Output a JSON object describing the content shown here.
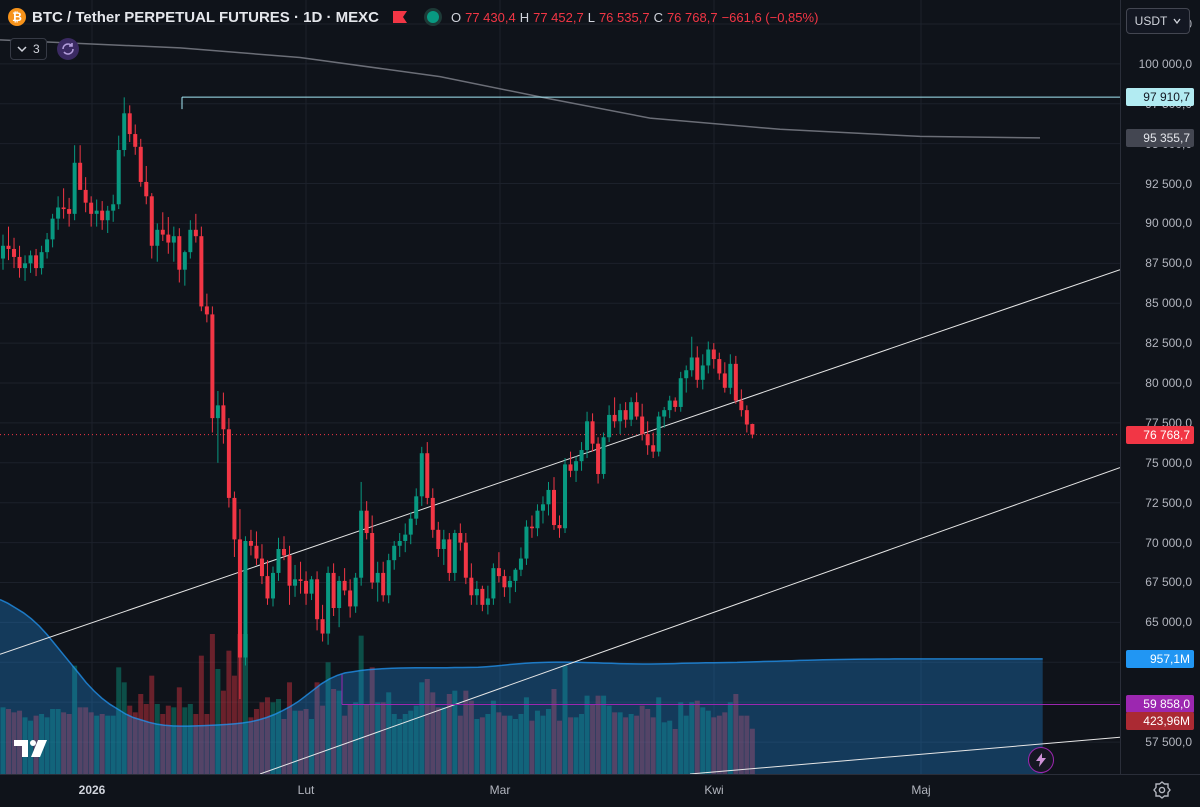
{
  "header": {
    "symbol": "BTC / Tether PERPETUAL FUTURES · 1D · MEXC",
    "open_label": "O",
    "open": "77 430,4",
    "high_label": "H",
    "high": "77 452,7",
    "low_label": "L",
    "low": "76 535,7",
    "close_label": "C",
    "close": "76 768,7",
    "change": "−661,6 (−0,85%)"
  },
  "indicators": {
    "count": "3"
  },
  "currency": {
    "label": "USDT"
  },
  "price_axis": {
    "labels": [
      "102 500,0",
      "100 000,0",
      "97 500,0",
      "95 000,0",
      "92 500,0",
      "90 000,0",
      "87 500,0",
      "85 000,0",
      "82 500,0",
      "80 000,0",
      "77 500,0",
      "75 000,0",
      "72 500,0",
      "70 000,0",
      "67 500,0",
      "65 000,0",
      "62 500,0",
      "60 000,0",
      "57 500,0"
    ]
  },
  "price_tags": {
    "high_line": "97 910,7",
    "ma": "95 355,7",
    "last": "76 768,7",
    "volume_ma": "957,1M",
    "low_line": "59 858,0",
    "volume": "423,96M"
  },
  "time_axis": {
    "labels": [
      {
        "text": "2026",
        "bold": true
      },
      {
        "text": "Lut",
        "bold": false
      },
      {
        "text": "Mar",
        "bold": false
      },
      {
        "text": "Kwi",
        "bold": false
      },
      {
        "text": "Maj",
        "bold": false
      }
    ]
  },
  "colors": {
    "up": "#089981",
    "down": "#f23645",
    "background": "#0f131a",
    "volume_ma": "#2196f3",
    "low_line": "#9c27b0",
    "high_line": "#a5e8f5"
  },
  "icons": {
    "logo": "btc-logo",
    "sync": "sync-icon",
    "flash": "flash-icon",
    "settings": "gear-icon",
    "chevron": "chevron-down-icon"
  },
  "chart_data": {
    "type": "candlestick",
    "symbol": "BTC / Tether PERPETUAL FUTURES",
    "interval": "1D",
    "y_range": [
      55500,
      104000
    ],
    "candles_ohlc": [
      [
        87800,
        89300,
        87100,
        88600
      ],
      [
        88600,
        89800,
        87700,
        88400
      ],
      [
        88400,
        89100,
        87200,
        87900
      ],
      [
        87900,
        88600,
        86600,
        87200
      ],
      [
        87200,
        88000,
        86400,
        87500
      ],
      [
        87500,
        88300,
        86900,
        88000
      ],
      [
        88000,
        88400,
        86700,
        87200
      ],
      [
        87200,
        88600,
        86800,
        88200
      ],
      [
        88200,
        89400,
        87800,
        89000
      ],
      [
        89000,
        90600,
        88500,
        90300
      ],
      [
        90300,
        91700,
        89600,
        91000
      ],
      [
        91000,
        92200,
        90300,
        90900
      ],
      [
        90900,
        91600,
        89800,
        90600
      ],
      [
        90600,
        94900,
        90200,
        93800
      ],
      [
        93800,
        94900,
        92700,
        92100
      ],
      [
        92100,
        92900,
        90700,
        91300
      ],
      [
        91300,
        91700,
        89800,
        90600
      ],
      [
        90600,
        91500,
        89800,
        90800
      ],
      [
        90800,
        91400,
        89600,
        90200
      ],
      [
        90200,
        91100,
        89400,
        90800
      ],
      [
        90800,
        91800,
        90100,
        91200
      ],
      [
        91200,
        95500,
        90900,
        94600
      ],
      [
        94600,
        97900,
        94200,
        96900
      ],
      [
        96900,
        97400,
        95100,
        95600
      ],
      [
        95600,
        96200,
        94300,
        94800
      ],
      [
        94800,
        95300,
        92300,
        92600
      ],
      [
        92600,
        93600,
        91200,
        91700
      ],
      [
        91700,
        91900,
        87800,
        88600
      ],
      [
        88600,
        90000,
        87600,
        89600
      ],
      [
        89600,
        90700,
        88900,
        89300
      ],
      [
        89300,
        90400,
        88100,
        88800
      ],
      [
        88800,
        89800,
        87600,
        89200
      ],
      [
        89200,
        89700,
        86300,
        87100
      ],
      [
        87100,
        88300,
        86100,
        88200
      ],
      [
        88200,
        90200,
        87800,
        89600
      ],
      [
        89600,
        90600,
        88800,
        89200
      ],
      [
        89200,
        89800,
        84500,
        84800
      ],
      [
        84800,
        85600,
        83800,
        84300
      ],
      [
        84300,
        84800,
        76900,
        77800
      ],
      [
        77800,
        79500,
        75000,
        78600
      ],
      [
        78600,
        79400,
        76200,
        77100
      ],
      [
        77100,
        77800,
        72200,
        72800
      ],
      [
        72800,
        73200,
        69100,
        70200
      ],
      [
        70200,
        72100,
        60200,
        62800
      ],
      [
        62800,
        70400,
        62300,
        70100
      ],
      [
        70100,
        70800,
        69200,
        69800
      ],
      [
        69800,
        70700,
        68600,
        69000
      ],
      [
        69000,
        69900,
        67400,
        67900
      ],
      [
        67900,
        68900,
        66100,
        66500
      ],
      [
        66500,
        68500,
        66000,
        68100
      ],
      [
        68100,
        70300,
        67600,
        69600
      ],
      [
        69600,
        70400,
        68900,
        69200
      ],
      [
        69200,
        69800,
        66100,
        67300
      ],
      [
        67300,
        68600,
        66600,
        67700
      ],
      [
        67700,
        68800,
        66800,
        67600
      ],
      [
        67600,
        68200,
        66100,
        66800
      ],
      [
        66800,
        67900,
        66400,
        67700
      ],
      [
        67700,
        68200,
        64500,
        65200
      ],
      [
        65200,
        66100,
        63800,
        64300
      ],
      [
        64300,
        68500,
        63600,
        68100
      ],
      [
        68100,
        68700,
        65400,
        65900
      ],
      [
        65900,
        67900,
        64700,
        67600
      ],
      [
        67600,
        68400,
        66700,
        67000
      ],
      [
        67000,
        67700,
        65300,
        66000
      ],
      [
        66000,
        68100,
        65600,
        67800
      ],
      [
        67800,
        73800,
        67300,
        72000
      ],
      [
        72000,
        72600,
        70200,
        70600
      ],
      [
        70600,
        71700,
        67100,
        67500
      ],
      [
        67500,
        68800,
        66300,
        68100
      ],
      [
        68100,
        68800,
        66300,
        66700
      ],
      [
        66700,
        69300,
        66200,
        68900
      ],
      [
        68900,
        70100,
        68300,
        69800
      ],
      [
        69800,
        70600,
        69100,
        70100
      ],
      [
        70100,
        71200,
        69400,
        70500
      ],
      [
        70500,
        71900,
        69900,
        71500
      ],
      [
        71500,
        73400,
        71100,
        72900
      ],
      [
        72900,
        76000,
        72300,
        75600
      ],
      [
        75600,
        76300,
        72400,
        72800
      ],
      [
        72800,
        73400,
        70300,
        70800
      ],
      [
        70800,
        71300,
        69100,
        69600
      ],
      [
        69600,
        70800,
        68600,
        70200
      ],
      [
        70200,
        70600,
        67600,
        68100
      ],
      [
        68100,
        70800,
        67600,
        70600
      ],
      [
        70600,
        71200,
        69500,
        70000
      ],
      [
        70000,
        70600,
        67400,
        67800
      ],
      [
        67800,
        68700,
        66100,
        66700
      ],
      [
        66700,
        67600,
        66100,
        67100
      ],
      [
        67100,
        67300,
        65700,
        66100
      ],
      [
        66100,
        67300,
        65500,
        66500
      ],
      [
        66500,
        68700,
        66100,
        68400
      ],
      [
        68400,
        69400,
        67500,
        67900
      ],
      [
        67900,
        68300,
        66600,
        67200
      ],
      [
        67200,
        67900,
        66200,
        67600
      ],
      [
        67600,
        68400,
        66900,
        68300
      ],
      [
        68300,
        69700,
        67900,
        69000
      ],
      [
        69000,
        71400,
        68600,
        71000
      ],
      [
        71000,
        71700,
        70300,
        70900
      ],
      [
        70900,
        72400,
        70400,
        72000
      ],
      [
        72000,
        72900,
        71200,
        72400
      ],
      [
        72400,
        73800,
        71700,
        73300
      ],
      [
        73300,
        74100,
        70800,
        71100
      ],
      [
        71100,
        71700,
        70300,
        70900
      ],
      [
        70900,
        75300,
        70600,
        74900
      ],
      [
        74900,
        75700,
        74100,
        74500
      ],
      [
        74500,
        75400,
        73800,
        75100
      ],
      [
        75100,
        76300,
        74500,
        75800
      ],
      [
        75800,
        78200,
        75300,
        77600
      ],
      [
        77600,
        78100,
        75700,
        76200
      ],
      [
        76200,
        76600,
        73700,
        74300
      ],
      [
        74300,
        76900,
        74000,
        76600
      ],
      [
        76600,
        78600,
        76300,
        78000
      ],
      [
        78000,
        79100,
        77200,
        77600
      ],
      [
        77600,
        78700,
        76800,
        78300
      ],
      [
        78300,
        78800,
        77200,
        77700
      ],
      [
        77700,
        79100,
        77300,
        78800
      ],
      [
        78800,
        79400,
        77700,
        77900
      ],
      [
        77900,
        78700,
        76400,
        76800
      ],
      [
        76800,
        77600,
        75500,
        76100
      ],
      [
        76100,
        76900,
        75300,
        75700
      ],
      [
        75700,
        78200,
        75400,
        77900
      ],
      [
        77900,
        78500,
        77200,
        78300
      ],
      [
        78300,
        79200,
        77800,
        78900
      ],
      [
        78900,
        79100,
        78200,
        78500
      ],
      [
        78500,
        80700,
        78200,
        80300
      ],
      [
        80300,
        81100,
        79400,
        80800
      ],
      [
        80800,
        82900,
        80400,
        81600
      ],
      [
        81600,
        82300,
        79700,
        80200
      ],
      [
        80200,
        81800,
        79600,
        81100
      ],
      [
        81100,
        82600,
        80600,
        82100
      ],
      [
        82100,
        82500,
        80900,
        81500
      ],
      [
        81500,
        81900,
        80200,
        80600
      ],
      [
        80600,
        81300,
        79400,
        79700
      ],
      [
        79700,
        81800,
        79300,
        81200
      ],
      [
        81200,
        81700,
        78700,
        78900
      ],
      [
        78900,
        79600,
        77900,
        78300
      ],
      [
        78300,
        78600,
        76900,
        77400
      ],
      [
        77430.4,
        77452.7,
        76535.7,
        76768.7
      ]
    ],
    "volume_ma": [
      1450,
      1420,
      1380,
      1340,
      1290,
      1230,
      1160,
      1080,
      1000,
      920,
      840,
      760,
      690,
      630,
      580,
      540,
      500,
      470,
      450,
      430,
      415,
      405,
      400,
      398,
      398,
      400,
      402,
      405,
      408,
      412,
      418,
      425,
      435,
      450,
      470,
      495,
      525,
      560,
      600,
      650,
      700,
      750,
      790,
      820,
      840,
      850,
      860,
      868,
      872,
      876,
      879,
      881,
      882,
      883,
      884,
      884,
      884,
      884,
      885,
      885,
      886,
      888,
      892,
      897,
      903,
      910,
      915,
      920,
      924,
      927,
      929,
      930,
      930,
      929,
      928,
      926,
      924,
      922,
      920,
      918,
      916,
      915,
      914,
      914,
      915,
      916,
      918,
      920,
      922,
      923,
      924,
      925,
      926,
      927,
      928,
      930,
      932,
      934,
      936,
      938,
      940,
      942,
      944,
      946,
      948,
      950,
      951,
      952,
      953,
      954,
      955,
      955,
      956,
      956,
      957,
      957,
      957,
      957,
      957,
      957,
      957,
      957,
      957,
      957,
      957,
      957,
      957,
      957,
      957,
      957,
      957,
      957,
      957,
      957
    ],
    "ma_line": [
      [
        0,
        101500
      ],
      [
        180,
        101000
      ],
      [
        300,
        100400
      ],
      [
        440,
        99200
      ],
      [
        550,
        97800
      ],
      [
        650,
        96600
      ],
      [
        780,
        95900
      ],
      [
        920,
        95450
      ],
      [
        1040,
        95356
      ]
    ],
    "channel_upper": [
      [
        0,
        63000
      ],
      [
        1120,
        87100
      ]
    ],
    "channel_lower": [
      [
        260,
        55500
      ],
      [
        1120,
        74700
      ]
    ],
    "support_line": [
      [
        690,
        55500
      ],
      [
        1120,
        57800
      ]
    ],
    "high_line": 97910.7,
    "low_line": 59858.0
  }
}
